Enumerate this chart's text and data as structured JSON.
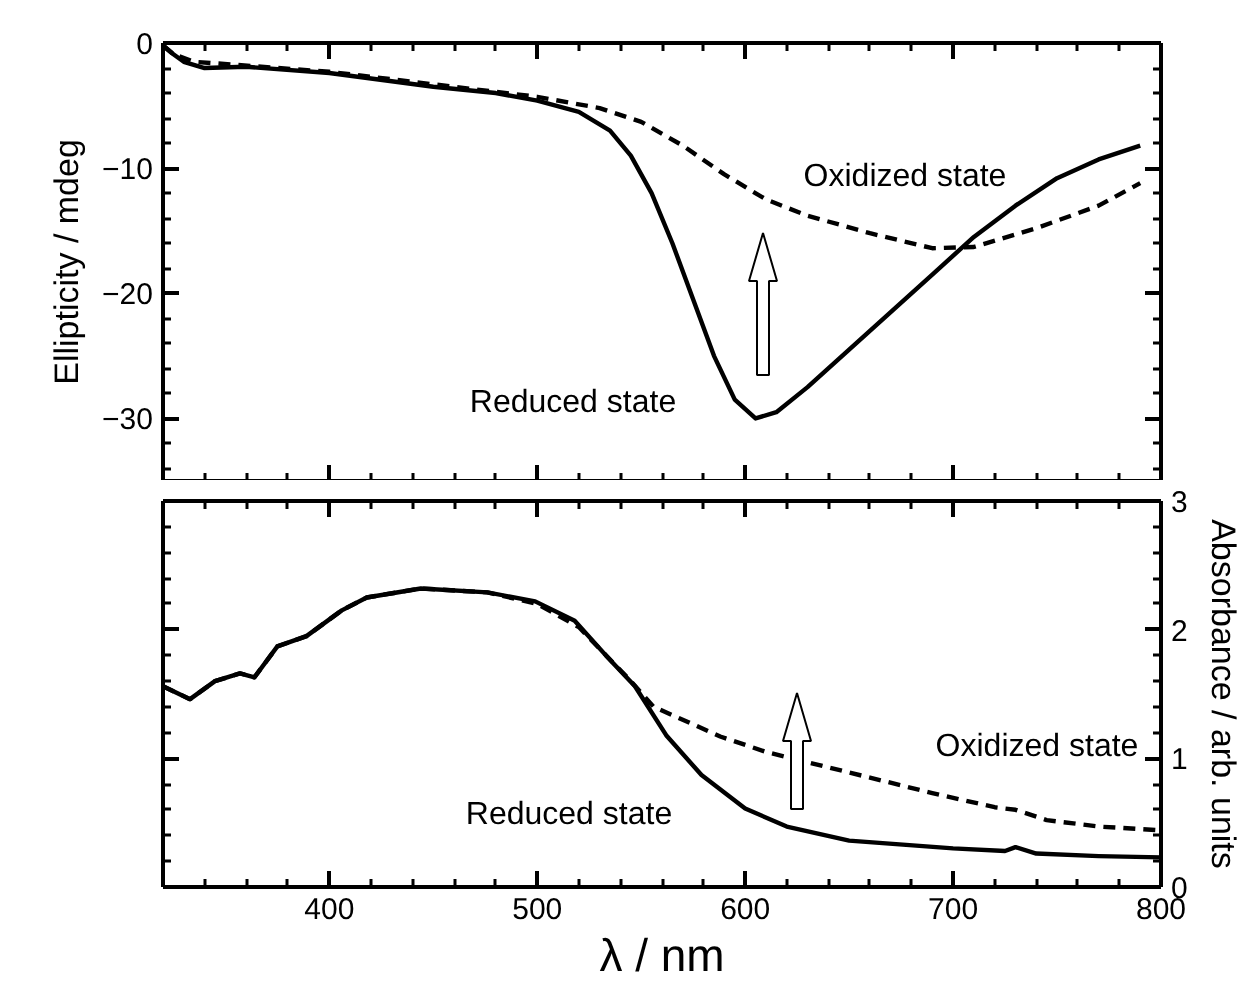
{
  "chart_data": [
    {
      "type": "line",
      "ylabel": "Ellipticity / mdeg",
      "xlim": [
        320,
        800
      ],
      "xticks": [
        400,
        500,
        600,
        700,
        800
      ],
      "ylim": [
        -35,
        0
      ],
      "yticks": [
        0,
        -10,
        -20,
        -30
      ],
      "tick_labels": "y",
      "series": [
        {
          "color": "#000000",
          "line_style": "solid",
          "x": [
            320,
            325,
            330,
            340,
            360,
            400,
            450,
            480,
            500,
            520,
            535,
            545,
            555,
            565,
            575,
            585,
            595,
            605,
            615,
            630,
            650,
            670,
            690,
            710,
            730,
            750,
            770,
            790
          ],
          "values": [
            -0.2,
            -0.9,
            -1.5,
            -2.0,
            -1.9,
            -2.4,
            -3.5,
            -4.0,
            -4.6,
            -5.5,
            -7,
            -9,
            -12,
            -16,
            -20.5,
            -25,
            -28.5,
            -30,
            -29.5,
            -27.5,
            -24.5,
            -21.5,
            -18.5,
            -15.5,
            -13,
            -10.8,
            -9.3,
            -8.2
          ]
        },
        {
          "color": "#000000",
          "line_style": "dashed",
          "x": [
            320,
            325,
            335,
            400,
            450,
            500,
            530,
            550,
            570,
            590,
            610,
            630,
            660,
            690,
            710,
            740,
            770,
            790
          ],
          "values": [
            -0.2,
            -0.9,
            -1.5,
            -2.3,
            -3.3,
            -4.3,
            -5.2,
            -6.3,
            -8.2,
            -10.5,
            -12.5,
            -13.8,
            -15.2,
            -16.4,
            -16.3,
            -14.8,
            -13,
            -11.2
          ]
        }
      ],
      "annotations": [
        "Oxidized state",
        "Reduced state"
      ]
    },
    {
      "type": "line",
      "xlabel": "λ / nm",
      "y2label": "Absorbance / arb. units",
      "xlim": [
        320,
        800
      ],
      "xticks": [
        400,
        500,
        600,
        700,
        800
      ],
      "y2lim": [
        0,
        3
      ],
      "y2ticks": [
        0,
        1,
        2,
        3
      ],
      "series": [
        {
          "color": "#000000",
          "line_style": "solid",
          "axis": "y2",
          "x": [
            320,
            333,
            345,
            357,
            364,
            375,
            389,
            406,
            418,
            444,
            476,
            499,
            518,
            533,
            547,
            562,
            579,
            600,
            620,
            650,
            700,
            725,
            730,
            740,
            770,
            800
          ],
          "values": [
            1.56,
            1.46,
            1.6,
            1.66,
            1.63,
            1.87,
            1.95,
            2.15,
            2.25,
            2.32,
            2.29,
            2.22,
            2.07,
            1.8,
            1.56,
            1.18,
            0.87,
            0.61,
            0.47,
            0.36,
            0.3,
            0.28,
            0.31,
            0.26,
            0.24,
            0.23
          ]
        },
        {
          "color": "#000000",
          "line_style": "dashed",
          "axis": "y2",
          "x": [
            320,
            333,
            345,
            357,
            364,
            375,
            389,
            406,
            418,
            444,
            476,
            500,
            520,
            545,
            556,
            588,
            610,
            630,
            660,
            690,
            720,
            730,
            745,
            770,
            800
          ],
          "values": [
            1.56,
            1.46,
            1.6,
            1.66,
            1.63,
            1.87,
            1.95,
            2.15,
            2.25,
            2.32,
            2.29,
            2.2,
            2.02,
            1.6,
            1.4,
            1.17,
            1.05,
            0.97,
            0.85,
            0.73,
            0.62,
            0.6,
            0.52,
            0.47,
            0.44
          ]
        }
      ],
      "annotations": [
        "Oxidized state",
        "Reduced state"
      ]
    }
  ]
}
